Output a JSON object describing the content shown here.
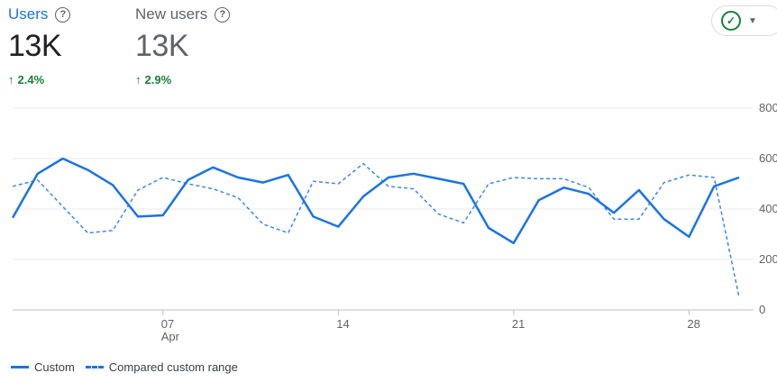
{
  "metrics": [
    {
      "label": "Users",
      "value": "13K",
      "delta": "2.4%",
      "active": true
    },
    {
      "label": "New users",
      "value": "13K",
      "delta": "2.9%",
      "active": false
    }
  ],
  "status_icon": "check-circle-icon",
  "help_icon": "help-circle-icon",
  "help_glyph": "?",
  "chart_data": {
    "type": "line",
    "x_ticks": [
      {
        "label": "07",
        "sublabel": "Apr",
        "day": 7
      },
      {
        "label": "14",
        "day": 14
      },
      {
        "label": "21",
        "day": 21
      },
      {
        "label": "28",
        "day": 28
      }
    ],
    "y_ticks": [
      "800",
      "600",
      "400",
      "200",
      "0"
    ],
    "ylim": [
      0,
      800
    ],
    "x_days": [
      1,
      2,
      3,
      4,
      5,
      6,
      7,
      8,
      9,
      10,
      11,
      12,
      13,
      14,
      15,
      16,
      17,
      18,
      19,
      20,
      21,
      22,
      23,
      24,
      25,
      26,
      27,
      28,
      29,
      30
    ],
    "series": [
      {
        "name": "Custom",
        "style": "solid",
        "color": "#1a73e8",
        "values": [
          365,
          540,
          600,
          555,
          495,
          370,
          375,
          515,
          565,
          525,
          505,
          535,
          370,
          330,
          450,
          525,
          540,
          520,
          500,
          325,
          265,
          435,
          485,
          460,
          385,
          475,
          360,
          290,
          490,
          525
        ]
      },
      {
        "name": "Compared custom range",
        "style": "dashed",
        "color": "#1a73e8",
        "values": [
          490,
          515,
          410,
          305,
          315,
          475,
          525,
          500,
          480,
          445,
          340,
          305,
          510,
          500,
          580,
          490,
          480,
          380,
          345,
          500,
          525,
          520,
          520,
          485,
          360,
          360,
          505,
          535,
          525,
          50
        ]
      }
    ]
  },
  "legend": [
    {
      "label": "Custom",
      "style": "solid"
    },
    {
      "label": "Compared custom range",
      "style": "dashed"
    }
  ]
}
